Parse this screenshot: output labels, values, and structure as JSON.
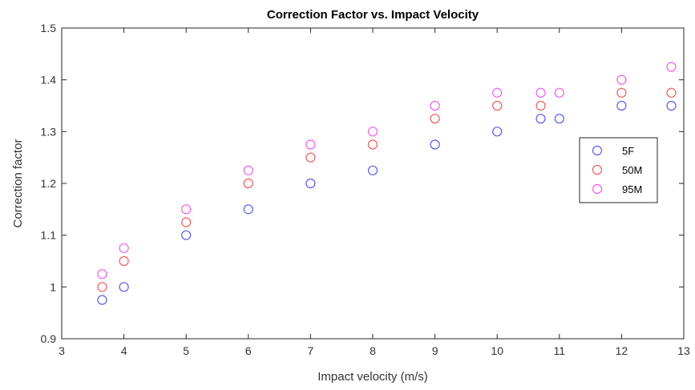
{
  "chart_data": {
    "type": "scatter",
    "title": "Correction Factor vs. Impact Velocity",
    "xlabel": "Impact velocity (m/s)",
    "ylabel": "Correction factor",
    "xlim": [
      3,
      13
    ],
    "ylim": [
      0.9,
      1.5
    ],
    "x_ticks": [
      "3",
      "4",
      "5",
      "6",
      "7",
      "8",
      "9",
      "10",
      "11",
      "12",
      "13"
    ],
    "y_ticks": [
      "0.9",
      "1",
      "1.1",
      "1.2",
      "1.3",
      "1.4",
      "1.5"
    ],
    "grid": false,
    "legend_position": "right",
    "series": [
      {
        "name": "5F",
        "color": "#5a5af0",
        "points": [
          [
            3.65,
            0.975
          ],
          [
            4,
            1.0
          ],
          [
            5,
            1.1
          ],
          [
            6,
            1.15
          ],
          [
            7,
            1.2
          ],
          [
            8,
            1.225
          ],
          [
            9,
            1.275
          ],
          [
            10,
            1.3
          ],
          [
            10.7,
            1.325
          ],
          [
            11,
            1.325
          ],
          [
            12,
            1.35
          ],
          [
            12.8,
            1.35
          ]
        ]
      },
      {
        "name": "50M",
        "color": "#f05a5a",
        "points": [
          [
            3.65,
            1.0
          ],
          [
            4,
            1.05
          ],
          [
            5,
            1.125
          ],
          [
            6,
            1.2
          ],
          [
            7,
            1.25
          ],
          [
            8,
            1.275
          ],
          [
            9,
            1.325
          ],
          [
            10,
            1.35
          ],
          [
            10.7,
            1.35
          ],
          [
            12,
            1.375
          ],
          [
            12.8,
            1.375
          ]
        ]
      },
      {
        "name": "95M",
        "color": "#f05af0",
        "points": [
          [
            3.65,
            1.025
          ],
          [
            4,
            1.075
          ],
          [
            5,
            1.15
          ],
          [
            6,
            1.225
          ],
          [
            7,
            1.275
          ],
          [
            8,
            1.3
          ],
          [
            9,
            1.35
          ],
          [
            10,
            1.375
          ],
          [
            10.7,
            1.375
          ],
          [
            11,
            1.375
          ],
          [
            12,
            1.4
          ],
          [
            12.8,
            1.425
          ]
        ]
      }
    ]
  }
}
